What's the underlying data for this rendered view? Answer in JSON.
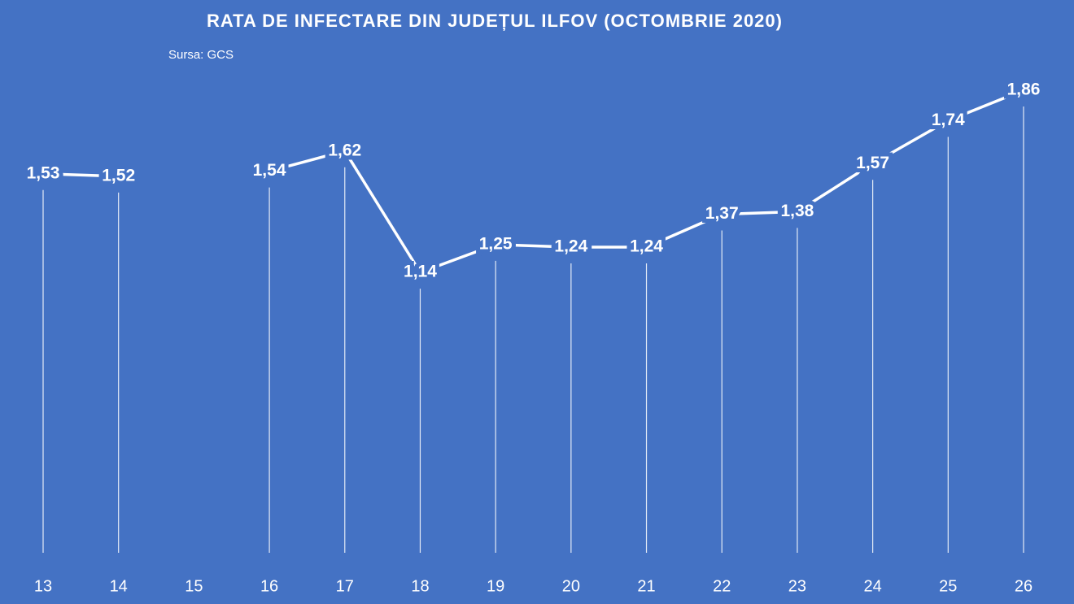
{
  "chart_data": {
    "type": "line",
    "title": "RATA DE INFECTARE DIN JUDEȚUL ILFOV (OCTOMBRIE 2020)",
    "subtitle": "Sursa: GCS",
    "categories": [
      "13",
      "14",
      "15",
      "16",
      "17",
      "18",
      "19",
      "20",
      "21",
      "22",
      "23",
      "24",
      "25",
      "26"
    ],
    "series": [
      {
        "color": "#ffffff",
        "values": [
          1.53,
          1.52,
          null,
          1.54,
          1.62,
          1.14,
          1.25,
          1.24,
          1.24,
          1.37,
          1.38,
          1.57,
          1.74,
          1.86
        ],
        "value_labels": [
          "1,53",
          "1,52",
          null,
          "1,54",
          "1,62",
          "1,14",
          "1,25",
          "1,24",
          "1,24",
          "1,37",
          "1,38",
          "1,57",
          "1,74",
          "1,86"
        ]
      }
    ],
    "background": "#4472c4"
  }
}
